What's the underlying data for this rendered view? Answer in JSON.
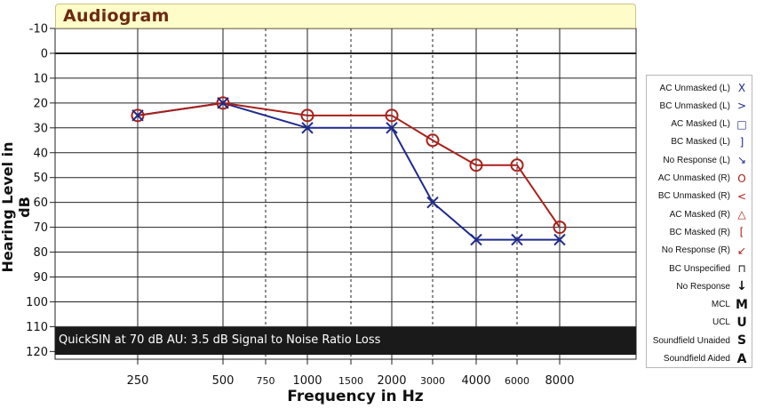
{
  "chart_data": {
    "type": "line",
    "title": "Audiogram",
    "xlabel": "Frequency in Hz",
    "ylabel": "Hearing Level in dB",
    "ylim": [
      -10,
      120
    ],
    "y_ticks": [
      "-10",
      "0",
      "10",
      "20",
      "30",
      "40",
      "50",
      "60",
      "70",
      "80",
      "90",
      "100",
      "110",
      "120"
    ],
    "x_ticks": [
      {
        "value": 250,
        "label": "250",
        "major": true
      },
      {
        "value": 500,
        "label": "500",
        "major": true
      },
      {
        "value": 750,
        "label": "750",
        "major": false
      },
      {
        "value": 1000,
        "label": "1000",
        "major": true
      },
      {
        "value": 1500,
        "label": "1500",
        "major": false
      },
      {
        "value": 2000,
        "label": "2000",
        "major": true
      },
      {
        "value": 3000,
        "label": "3000",
        "major": false
      },
      {
        "value": 4000,
        "label": "4000",
        "major": true
      },
      {
        "value": 6000,
        "label": "6000",
        "major": false
      },
      {
        "value": 8000,
        "label": "8000",
        "major": true
      }
    ],
    "x_scale": "log",
    "series": [
      {
        "marker": "x",
        "color": "#1f2a8c",
        "x": [
          250,
          500,
          1000,
          2000,
          3000,
          4000,
          6000,
          8000
        ],
        "y": [
          25,
          20,
          30,
          30,
          60,
          75,
          75,
          75
        ]
      },
      {
        "marker": "o",
        "color": "#a8201a",
        "x": [
          250,
          500,
          1000,
          2000,
          3000,
          4000,
          6000,
          8000
        ],
        "y": [
          25,
          20,
          25,
          25,
          35,
          45,
          45,
          70
        ]
      }
    ],
    "annotation": "QuickSIN at 70 dB AU: 3.5 dB Signal to Noise Ratio Loss",
    "legend": [
      {
        "label": "AC Unmasked (L)",
        "symbol": "X",
        "color": "#1f2a8c"
      },
      {
        "label": "BC Unmasked (L)",
        "symbol": ">",
        "color": "#1f2a8c"
      },
      {
        "label": "AC Masked (L)",
        "symbol": "□",
        "color": "#1f2a8c"
      },
      {
        "label": "BC Masked (L)",
        "symbol": "]",
        "color": "#1f2a8c"
      },
      {
        "label": "No Response (L)",
        "symbol": "↘",
        "color": "#1f2a8c"
      },
      {
        "label": "AC Unmasked (R)",
        "symbol": "O",
        "color": "#a8201a"
      },
      {
        "label": "BC Unmasked (R)",
        "symbol": "<",
        "color": "#a8201a"
      },
      {
        "label": "AC Masked (R)",
        "symbol": "△",
        "color": "#a8201a"
      },
      {
        "label": "BC Masked (R)",
        "symbol": "[",
        "color": "#a8201a"
      },
      {
        "label": "No Response (R)",
        "symbol": "↙",
        "color": "#a8201a"
      },
      {
        "label": "BC Unspecified",
        "symbol": "⊓",
        "color": "#111111"
      },
      {
        "label": "No Response",
        "symbol": "↓",
        "color": "#111111"
      },
      {
        "label": "MCL",
        "symbol": "M",
        "color": "#111111"
      },
      {
        "label": "UCL",
        "symbol": "U",
        "color": "#111111"
      },
      {
        "label": "Soundfield Unaided",
        "symbol": "S",
        "color": "#111111"
      },
      {
        "label": "Soundfield Aided",
        "symbol": "A",
        "color": "#111111"
      }
    ]
  }
}
